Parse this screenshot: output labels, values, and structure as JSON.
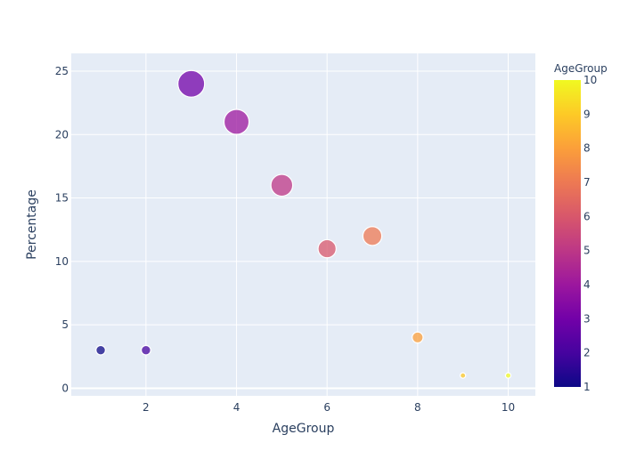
{
  "chart_data": {
    "type": "scatter",
    "title": "",
    "xlabel": "AgeGroup",
    "ylabel": "Percentage",
    "xlim": [
      0.35,
      10.6
    ],
    "ylim": [
      -0.6,
      26.4
    ],
    "x_ticks": [
      2,
      4,
      6,
      8,
      10
    ],
    "y_ticks": [
      0,
      5,
      10,
      15,
      20,
      25
    ],
    "grid": true,
    "points": [
      {
        "x": 1,
        "y": 3
      },
      {
        "x": 2,
        "y": 3
      },
      {
        "x": 3,
        "y": 24
      },
      {
        "x": 4,
        "y": 21
      },
      {
        "x": 5,
        "y": 16
      },
      {
        "x": 6,
        "y": 11
      },
      {
        "x": 7,
        "y": 12
      },
      {
        "x": 8,
        "y": 4
      },
      {
        "x": 9,
        "y": 1
      },
      {
        "x": 10,
        "y": 1
      }
    ],
    "size_by": "Percentage",
    "color_by": "AgeGroup",
    "colorbar": {
      "title": "AgeGroup",
      "range": [
        1,
        10
      ],
      "ticks": [
        1,
        2,
        3,
        4,
        5,
        6,
        7,
        8,
        9,
        10
      ],
      "colorscale": [
        "#0d0887",
        "#46039f",
        "#7201a8",
        "#9c179e",
        "#bd3786",
        "#d8576b",
        "#ed7953",
        "#fb9f3a",
        "#fdca26",
        "#f0f921"
      ]
    },
    "plot_bg": "#e5ecf6",
    "grid_color": "#ffffff",
    "text_color": "#2a3f5f"
  }
}
